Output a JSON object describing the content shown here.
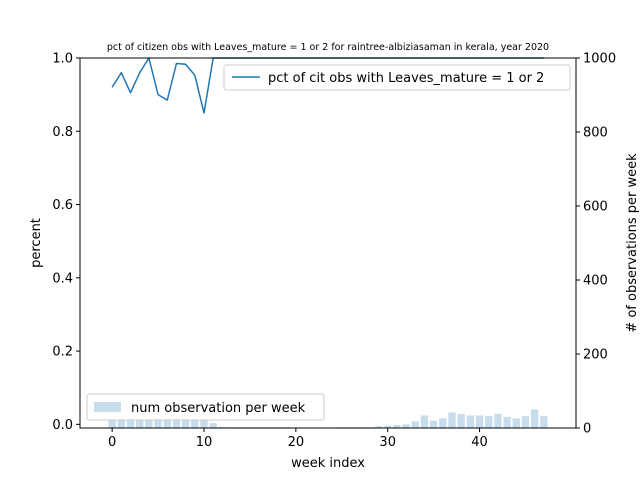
{
  "chart_data": {
    "type": "line",
    "title": "pct of citizen obs with Leaves_mature = 1 or 2 for raintree-albiziasaman in kerala, year 2020",
    "xlabel": "week index",
    "ylabel": "percent",
    "y2label": "# of observations per week",
    "xlim": [
      -3.5,
      50.5
    ],
    "ylim": [
      -0.01,
      1.0
    ],
    "y2lim": [
      0,
      1000
    ],
    "xticks": [
      0,
      10,
      20,
      30,
      40
    ],
    "xtick_labels": [
      "0",
      "10",
      "20",
      "30",
      "40"
    ],
    "yticks": [
      0.0,
      0.2,
      0.4,
      0.6,
      0.8,
      1.0
    ],
    "ytick_labels": [
      "0.0",
      "0.2",
      "0.4",
      "0.6",
      "0.8",
      "1.0"
    ],
    "y2ticks": [
      0,
      200,
      400,
      600,
      800,
      1000
    ],
    "y2tick_labels": [
      "0",
      "200",
      "400",
      "600",
      "800",
      "1000"
    ],
    "grid": false,
    "series": [
      {
        "name": "pct of cit obs with Leaves_mature = 1 or 2",
        "axis": "left",
        "color": "#1f77b4",
        "x": [
          0,
          1,
          2,
          3,
          4,
          5,
          6,
          7,
          8,
          9,
          10,
          11,
          12,
          13,
          14,
          15,
          16,
          17,
          18,
          19,
          20,
          21,
          22,
          23,
          24,
          25,
          26,
          27,
          28,
          29,
          30,
          31,
          32,
          33,
          34,
          35,
          36,
          37,
          38,
          39,
          40,
          41,
          42,
          43,
          44,
          45,
          46,
          47
        ],
        "values": [
          0.92,
          0.96,
          0.905,
          0.96,
          1.0,
          0.9,
          0.885,
          0.985,
          0.983,
          0.953,
          0.85,
          1.0,
          1.0,
          1.0,
          1.0,
          1.0,
          1.0,
          1.0,
          1.0,
          1.0,
          1.0,
          1.0,
          1.0,
          1.0,
          1.0,
          1.0,
          1.0,
          1.0,
          1.0,
          1.0,
          1.0,
          1.0,
          1.0,
          1.0,
          1.0,
          1.0,
          1.0,
          1.0,
          1.0,
          1.0,
          1.0,
          1.0,
          1.0,
          1.0,
          1.0,
          1.0,
          1.0,
          1.0
        ]
      },
      {
        "name": "num observation per week",
        "axis": "right",
        "type": "bar",
        "color": "#1f77b4",
        "opacity": 0.25,
        "x": [
          0,
          1,
          2,
          3,
          4,
          5,
          6,
          7,
          8,
          9,
          10,
          11,
          12,
          13,
          14,
          15,
          16,
          17,
          18,
          19,
          20,
          21,
          22,
          23,
          24,
          25,
          26,
          27,
          28,
          29,
          30,
          31,
          32,
          33,
          34,
          35,
          36,
          37,
          38,
          39,
          40,
          41,
          42,
          43,
          44,
          45,
          46,
          47
        ],
        "values": [
          24,
          24,
          25,
          24,
          24,
          26,
          24,
          26,
          25,
          22,
          24,
          13,
          3,
          2,
          2,
          2,
          2,
          2,
          2,
          2,
          1,
          1,
          1,
          1,
          1,
          2,
          2,
          2,
          2,
          5,
          6,
          8,
          10,
          18,
          34,
          20,
          26,
          42,
          38,
          34,
          34,
          32,
          38,
          30,
          26,
          32,
          50,
          32
        ]
      }
    ],
    "legend_line_position": "upper right",
    "legend_bar_position": "lower left"
  }
}
